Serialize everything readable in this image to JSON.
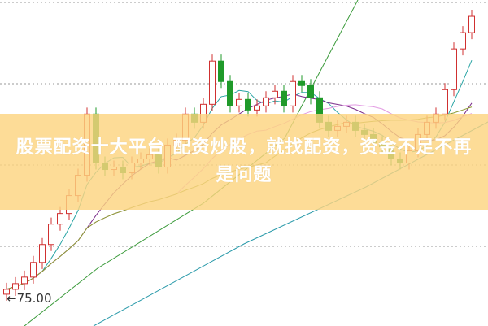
{
  "banner": {
    "text": "股票配资十大平台 配资炒股，就找配资，资金不足不再是问题",
    "background": "#fcd480"
  },
  "chart_data": {
    "type": "candlestick",
    "price_marker": "75.00",
    "price_marker_value": 75,
    "ylim": [
      72,
      112
    ],
    "grid": "horizontal dotted",
    "up_color": "#d03030",
    "down_color": "#1f9a2a",
    "close": [
      76.5,
      77.2,
      78.0,
      79.8,
      82.0,
      84.5,
      85.8,
      88.0,
      90.5,
      98.0,
      92.0,
      91.2,
      91.5,
      90.8,
      92.0,
      92.5,
      93.0,
      91.5,
      94.2,
      94.8,
      98.0,
      97.0,
      99.2,
      104.5,
      102.0,
      99.0,
      99.8,
      98.5,
      99.0,
      100.0,
      100.8,
      99.0,
      102.0,
      101.5,
      100.0,
      97.0,
      96.0,
      96.5,
      97.0,
      96.0,
      95.5,
      94.5,
      94.0,
      92.5,
      92.0,
      93.5,
      95.5,
      97.0,
      98.0,
      101.0,
      106.0,
      108.0,
      110.0
    ],
    "moving_averages": [
      {
        "period": 5,
        "color": "#2aa5a5"
      },
      {
        "period": 10,
        "color": "#7a2a8a"
      },
      {
        "period": 20,
        "color": "#e39be3"
      },
      {
        "period": 30,
        "color": "#8a9a30"
      }
    ],
    "long_lines_colors": [
      "#3a9a3a",
      "#2a9aaa"
    ]
  }
}
